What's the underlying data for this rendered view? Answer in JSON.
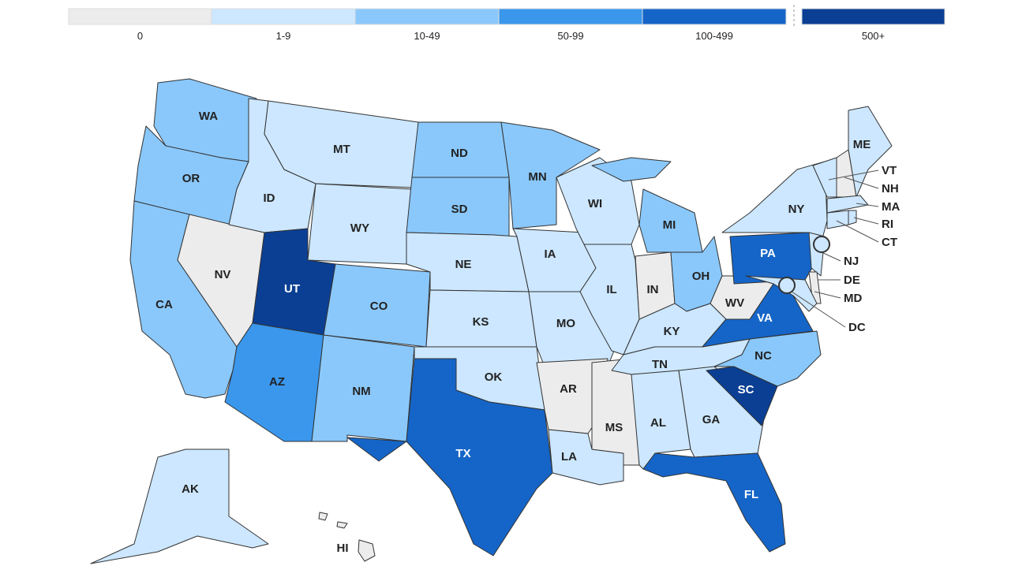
{
  "legend": [
    {
      "label": "0",
      "color": "#ececec"
    },
    {
      "label": "1-9",
      "color": "#cce7ff"
    },
    {
      "label": "10-49",
      "color": "#8ac8fb"
    },
    {
      "label": "50-99",
      "color": "#3a97ec"
    },
    {
      "label": "100-499",
      "color": "#1565c8"
    },
    {
      "label": "500+",
      "color": "#0a3f94"
    }
  ],
  "states": [
    {
      "label": "WA",
      "color": "#8ac8fb"
    },
    {
      "label": "OR",
      "color": "#8ac8fb"
    },
    {
      "label": "CA",
      "color": "#8ac8fb"
    },
    {
      "label": "NV",
      "color": "#ececec"
    },
    {
      "label": "ID",
      "color": "#cce7ff"
    },
    {
      "label": "MT",
      "color": "#cce7ff"
    },
    {
      "label": "WY",
      "color": "#cce7ff"
    },
    {
      "label": "UT",
      "color": "#0a3f94"
    },
    {
      "label": "CO",
      "color": "#8ac8fb"
    },
    {
      "label": "AZ",
      "color": "#3a97ec"
    },
    {
      "label": "NM",
      "color": "#8ac8fb"
    },
    {
      "label": "ND",
      "color": "#8ac8fb"
    },
    {
      "label": "SD",
      "color": "#8ac8fb"
    },
    {
      "label": "NE",
      "color": "#cce7ff"
    },
    {
      "label": "KS",
      "color": "#cce7ff"
    },
    {
      "label": "OK",
      "color": "#cce7ff"
    },
    {
      "label": "TX",
      "color": "#1565c8"
    },
    {
      "label": "MN",
      "color": "#8ac8fb"
    },
    {
      "label": "IA",
      "color": "#cce7ff"
    },
    {
      "label": "MO",
      "color": "#cce7ff"
    },
    {
      "label": "AR",
      "color": "#ececec"
    },
    {
      "label": "LA",
      "color": "#cce7ff"
    },
    {
      "label": "WI",
      "color": "#cce7ff"
    },
    {
      "label": "IL",
      "color": "#cce7ff"
    },
    {
      "label": "MS",
      "color": "#ececec"
    },
    {
      "label": "MI",
      "color": "#8ac8fb"
    },
    {
      "label": "IN",
      "color": "#ececec"
    },
    {
      "label": "OH",
      "color": "#8ac8fb"
    },
    {
      "label": "KY",
      "color": "#cce7ff"
    },
    {
      "label": "TN",
      "color": "#cce7ff"
    },
    {
      "label": "AL",
      "color": "#cce7ff"
    },
    {
      "label": "GA",
      "color": "#cce7ff"
    },
    {
      "label": "FL",
      "color": "#1565c8"
    },
    {
      "label": "SC",
      "color": "#0a3f94"
    },
    {
      "label": "NC",
      "color": "#8ac8fb"
    },
    {
      "label": "VA",
      "color": "#1565c8"
    },
    {
      "label": "WV",
      "color": "#ececec"
    },
    {
      "label": "PA",
      "color": "#1565c8"
    },
    {
      "label": "NY",
      "color": "#cce7ff"
    },
    {
      "label": "ME",
      "color": "#cce7ff"
    },
    {
      "label": "VT",
      "color": "#cce7ff"
    },
    {
      "label": "NH",
      "color": "#ececec"
    },
    {
      "label": "MA",
      "color": "#cce7ff"
    },
    {
      "label": "RI",
      "color": "#cce7ff"
    },
    {
      "label": "CT",
      "color": "#cce7ff"
    },
    {
      "label": "NJ",
      "color": "#cce7ff"
    },
    {
      "label": "DE",
      "color": "#ececec"
    },
    {
      "label": "MD",
      "color": "#cce7ff"
    },
    {
      "label": "DC",
      "color": "#cce7ff"
    },
    {
      "label": "AK",
      "color": "#cce7ff"
    },
    {
      "label": "HI",
      "color": "#ececec"
    }
  ]
}
